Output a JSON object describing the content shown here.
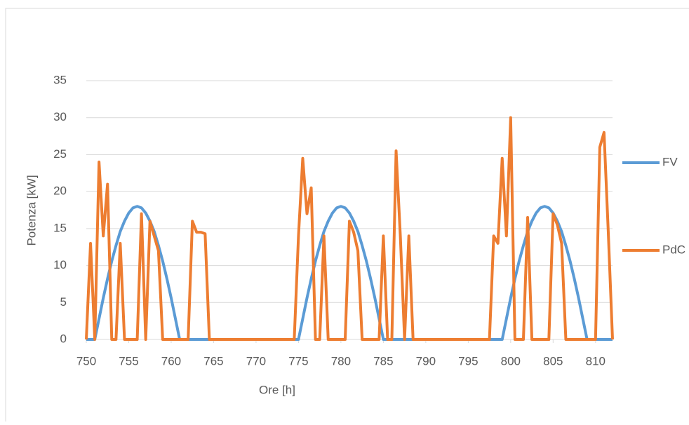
{
  "chart_data": {
    "type": "line",
    "x_label": "Ore [h]",
    "y_label": "Potenza [kW]",
    "x": [
      750,
      750.5,
      751,
      751.5,
      752,
      752.5,
      753,
      753.5,
      754,
      754.5,
      755,
      755.5,
      756,
      756.5,
      757,
      757.5,
      758,
      758.5,
      759,
      759.5,
      760,
      760.5,
      761,
      761.5,
      762,
      762.5,
      763,
      763.5,
      764,
      764.5,
      765,
      765.5,
      766,
      766.5,
      767,
      767.5,
      768,
      768.5,
      769,
      769.5,
      770,
      770.5,
      771,
      771.5,
      772,
      772.5,
      773,
      773.5,
      774,
      774.5,
      775,
      775.5,
      776,
      776.5,
      777,
      777.5,
      778,
      778.5,
      779,
      779.5,
      780,
      780.5,
      781,
      781.5,
      782,
      782.5,
      783,
      783.5,
      784,
      784.5,
      785,
      785.5,
      786,
      786.5,
      787,
      787.5,
      788,
      788.5,
      789,
      789.5,
      790,
      790.5,
      791,
      791.5,
      792,
      792.5,
      793,
      793.5,
      794,
      794.5,
      795,
      795.5,
      796,
      796.5,
      797,
      797.5,
      798,
      798.5,
      799,
      799.5,
      800,
      800.5,
      801,
      801.5,
      802,
      802.5,
      803,
      803.5,
      804,
      804.5,
      805,
      805.5,
      806,
      806.5,
      807,
      807.5,
      808,
      808.5,
      809,
      809.5,
      810,
      810.5,
      811,
      811.5,
      812
    ],
    "series": [
      {
        "name": "FV",
        "color": "#5b9bd5",
        "values": [
          0,
          0,
          0,
          2.8,
          5.6,
          8.2,
          10.6,
          12.7,
          14.6,
          16,
          17.1,
          17.8,
          18,
          17.8,
          17.1,
          16,
          14.6,
          12.7,
          10.6,
          8.2,
          5.6,
          2.8,
          0,
          0,
          0,
          0,
          0,
          0,
          0,
          0,
          0,
          0,
          0,
          0,
          0,
          0,
          0,
          0,
          0,
          0,
          0,
          0,
          0,
          0,
          0,
          0,
          0,
          0,
          0,
          0,
          0,
          2.8,
          5.6,
          8.2,
          10.6,
          12.7,
          14.6,
          16,
          17.1,
          17.8,
          18,
          17.8,
          17.1,
          16,
          14.6,
          12.7,
          10.6,
          8.2,
          5.6,
          2.8,
          0,
          0,
          0,
          0,
          0,
          0,
          0,
          0,
          0,
          0,
          0,
          0,
          0,
          0,
          0,
          0,
          0,
          0,
          0,
          0,
          0,
          0,
          0,
          0,
          0,
          0,
          0,
          0,
          0,
          2.8,
          5.6,
          8.2,
          10.6,
          12.7,
          14.6,
          16,
          17.1,
          17.8,
          18,
          17.8,
          17.1,
          16,
          14.6,
          12.7,
          10.6,
          8.2,
          5.6,
          2.8,
          0,
          0,
          0,
          0,
          0,
          0,
          0
        ]
      },
      {
        "name": "PdC",
        "color": "#ed7d31",
        "values": [
          0,
          13,
          0,
          24,
          14,
          21,
          0,
          0,
          13,
          0,
          0,
          0,
          0,
          17,
          0,
          16,
          14,
          12,
          0,
          0,
          0,
          0,
          0,
          0,
          0,
          16,
          14.5,
          14.5,
          14.3,
          0,
          0,
          0,
          0,
          0,
          0,
          0,
          0,
          0,
          0,
          0,
          0,
          0,
          0,
          0,
          0,
          0,
          0,
          0,
          0,
          0,
          14,
          24.5,
          17,
          20.5,
          0,
          0,
          14,
          0,
          0,
          0,
          0,
          0,
          16,
          14.5,
          12,
          0,
          0,
          0,
          0,
          0,
          14,
          0,
          0,
          25.5,
          14,
          0,
          14,
          0,
          0,
          0,
          0,
          0,
          0,
          0,
          0,
          0,
          0,
          0,
          0,
          0,
          0,
          0,
          0,
          0,
          0,
          0,
          14,
          13,
          24.5,
          14,
          30,
          0,
          0,
          0,
          16.5,
          0,
          0,
          0,
          0,
          0,
          17,
          15.5,
          13,
          0,
          0,
          0,
          0,
          0,
          0,
          0,
          0,
          26,
          28,
          14.5,
          0
        ]
      }
    ],
    "xlim": [
      750,
      812
    ],
    "xticks": [
      750,
      755,
      760,
      765,
      770,
      775,
      780,
      785,
      790,
      795,
      800,
      805,
      810
    ],
    "ylim": [
      0,
      35
    ],
    "yticks": [
      0,
      5,
      10,
      15,
      20,
      25,
      30,
      35
    ],
    "grid": true,
    "legend": "right"
  }
}
